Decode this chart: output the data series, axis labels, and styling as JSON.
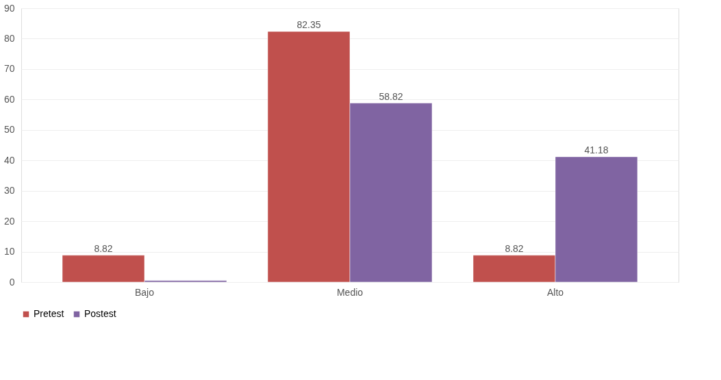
{
  "chart_data": {
    "type": "bar",
    "categories": [
      "Bajo",
      "Medio",
      "Alto"
    ],
    "series": [
      {
        "name": "Pretest",
        "color": "#c0504d",
        "values": [
          8.82,
          82.35,
          8.82
        ],
        "value_labels": [
          "8.82",
          "82.35",
          "8.82"
        ]
      },
      {
        "name": "Postest",
        "color": "#8064a2",
        "values": [
          0.5,
          58.82,
          41.18
        ],
        "value_labels": [
          null,
          "58.82",
          "41.18"
        ]
      }
    ],
    "ylim": [
      0,
      90
    ],
    "yticks": [
      0,
      10,
      20,
      30,
      40,
      50,
      60,
      70,
      80,
      90
    ],
    "grid": "y",
    "legend": "bottom"
  }
}
